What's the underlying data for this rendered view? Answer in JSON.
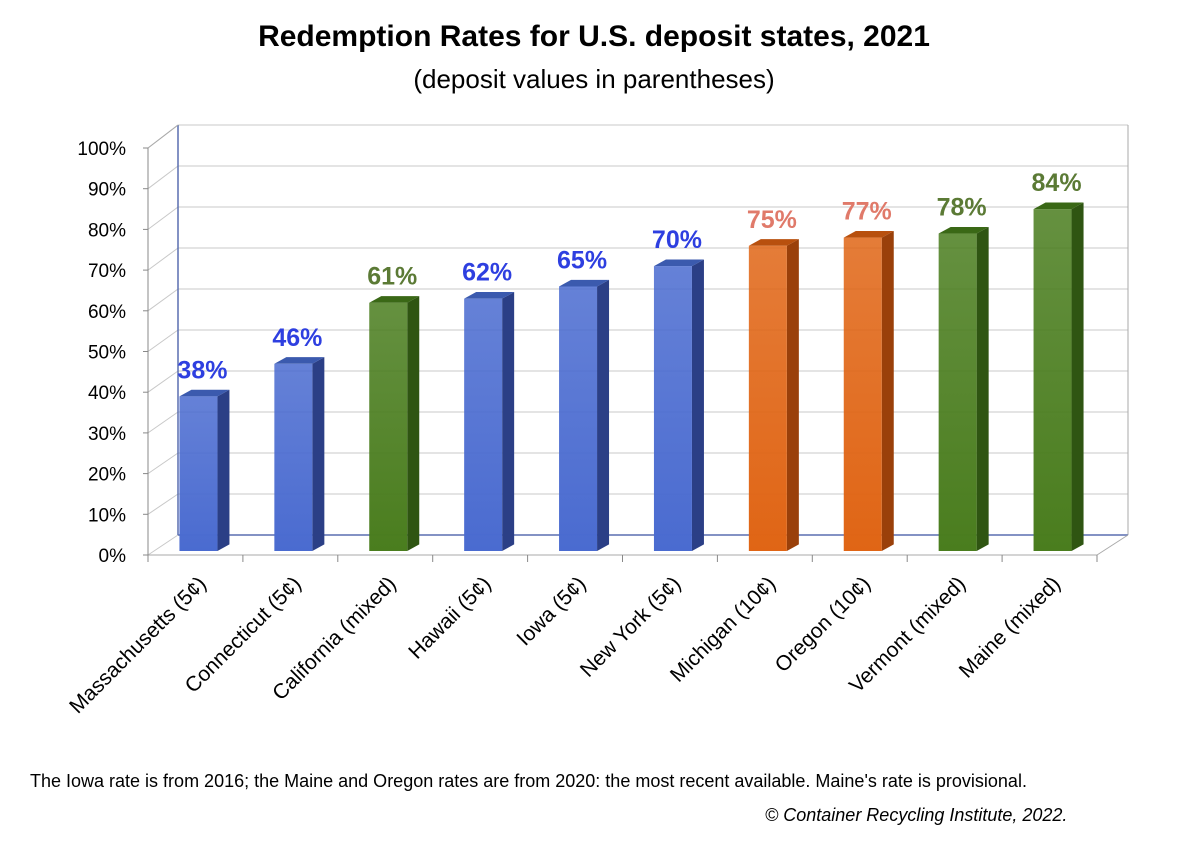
{
  "chart_data": {
    "type": "bar",
    "title": "Redemption Rates for U.S. deposit states, 2021",
    "subtitle": "(deposit values in parentheses)",
    "categories": [
      "Massachusetts (5¢)",
      "Connecticut (5¢)",
      "California (mixed)",
      "Hawaii (5¢)",
      "Iowa (5¢)",
      "New York (5¢)",
      "Michigan (10¢)",
      "Oregon (10¢)",
      "Vermont (mixed)",
      "Maine (mixed)"
    ],
    "values": [
      38,
      46,
      61,
      62,
      65,
      70,
      75,
      77,
      78,
      84
    ],
    "labels": [
      "38%",
      "46%",
      "61%",
      "62%",
      "65%",
      "70%",
      "75%",
      "77%",
      "78%",
      "84%"
    ],
    "groups": [
      "5¢",
      "5¢",
      "mixed",
      "5¢",
      "5¢",
      "5¢",
      "10¢",
      "10¢",
      "mixed",
      "mixed"
    ],
    "ylim": [
      0,
      100
    ],
    "yticks": [
      "0%",
      "10%",
      "20%",
      "30%",
      "40%",
      "50%",
      "60%",
      "70%",
      "80%",
      "90%",
      "100%"
    ],
    "grid": true,
    "colors": {
      "5¢": {
        "front": "#4a6bd0",
        "side": "#2b3f86",
        "top": "#3b5aae",
        "label": "#2e3fe0"
      },
      "mixed": {
        "front": "#4a7d1e",
        "side": "#2f5512",
        "top": "#3a6816",
        "label": "#5b7a35"
      },
      "10¢": {
        "front": "#e06515",
        "side": "#9a400a",
        "top": "#b8500e",
        "label": "#e07a6a"
      }
    }
  },
  "footnote": {
    "note": "The Iowa rate is from 2016; the  Maine and Oregon rates are from 2020: the most recent available. Maine's rate is provisional.",
    "credit": "© Container Recycling Institute, 2022."
  }
}
